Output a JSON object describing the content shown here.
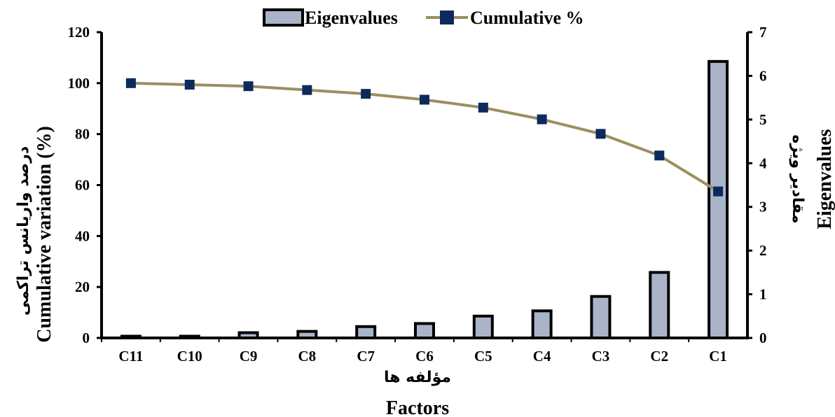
{
  "chart_data": {
    "type": "bar",
    "categories": [
      "C11",
      "C10",
      "C9",
      "C8",
      "C7",
      "C6",
      "C5",
      "C4",
      "C3",
      "C2",
      "C1"
    ],
    "series": [
      {
        "name": "Eigenvalues",
        "kind": "bar",
        "axis": "right",
        "values": [
          0.04,
          0.04,
          0.12,
          0.15,
          0.26,
          0.33,
          0.5,
          0.62,
          0.95,
          1.5,
          6.33
        ],
        "color": "#a9b4c8"
      },
      {
        "name": "Cumulative %",
        "kind": "line",
        "axis": "left",
        "values": [
          100,
          99.4,
          98.8,
          97.3,
          95.8,
          93.5,
          90.4,
          85.8,
          80.1,
          71.6,
          57.5
        ],
        "color": "#9b8f5e",
        "marker_color": "#0d2a5c"
      }
    ],
    "y_left": {
      "ylim": [
        0,
        120
      ],
      "ticks": [
        "0",
        "20",
        "40",
        "60",
        "80",
        "100",
        "120"
      ]
    },
    "y_right": {
      "ylim": [
        0,
        7
      ],
      "ticks": [
        "0",
        "1",
        "2",
        "3",
        "4",
        "5",
        "6",
        "7"
      ]
    },
    "legend_placement": "top-center",
    "grid": false
  },
  "labels": {
    "legend_eigen": "Eigenvalues",
    "legend_cum": "Cumulative %",
    "x_title_fa": "مؤلفه ها",
    "x_title_en": "Factors",
    "y_left_fa": "درصد واریانس تراکمی",
    "y_left_en": "Cumulative variation (%)",
    "y_right_fa": "مقادیر ویژه",
    "y_right_en": "Eigenvalues"
  }
}
